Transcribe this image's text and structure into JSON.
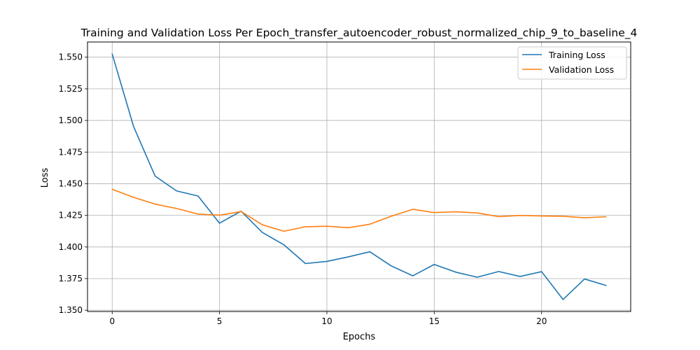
{
  "chart_data": {
    "type": "line",
    "title": "Training and Validation Loss Per Epoch_transfer_autoencoder_robust_normalized_chip_9_to_baseline_4",
    "xlabel": "Epochs",
    "ylabel": "Loss",
    "xlim": [
      -1.15,
      24.15
    ],
    "ylim": [
      1.349,
      1.562
    ],
    "xticks": [
      0,
      5,
      10,
      15,
      20
    ],
    "yticks": [
      1.35,
      1.375,
      1.4,
      1.425,
      1.45,
      1.475,
      1.5,
      1.525,
      1.55
    ],
    "grid": true,
    "legend_position": "upper right",
    "x": [
      0,
      1,
      2,
      3,
      4,
      5,
      6,
      7,
      8,
      9,
      10,
      11,
      12,
      13,
      14,
      15,
      16,
      17,
      18,
      19,
      20,
      21,
      22,
      23
    ],
    "series": [
      {
        "name": "Training Loss",
        "color": "#1f77b4",
        "values": [
          1.5525,
          1.495,
          1.456,
          1.4443,
          1.4403,
          1.4188,
          1.4283,
          1.4114,
          1.4017,
          1.3869,
          1.3886,
          1.3922,
          1.3962,
          1.385,
          1.3772,
          1.3862,
          1.3801,
          1.3761,
          1.3806,
          1.3767,
          1.3805,
          1.3585,
          1.3747,
          1.3696
        ]
      },
      {
        "name": "Validation Loss",
        "color": "#ff7f0e",
        "values": [
          1.4456,
          1.4392,
          1.4339,
          1.4304,
          1.426,
          1.4251,
          1.428,
          1.4175,
          1.4124,
          1.416,
          1.4164,
          1.4152,
          1.418,
          1.4243,
          1.4298,
          1.4272,
          1.4278,
          1.4269,
          1.424,
          1.4249,
          1.4245,
          1.4243,
          1.4231,
          1.4239
        ]
      }
    ]
  }
}
